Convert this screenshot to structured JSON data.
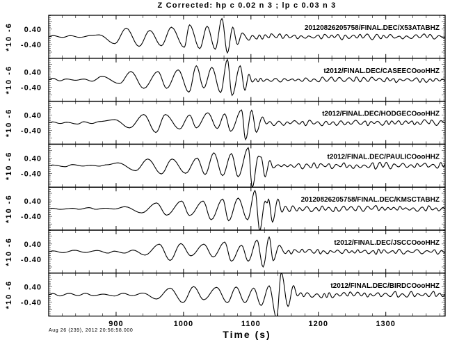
{
  "chart_data": {
    "type": "line",
    "title": "Z Corrected: hp c 0.02 n 3 ; lp c 0.03 n 3",
    "xlabel": "Time (s)",
    "start_time_label": "Aug 26 (239), 2012 20:56:58.000",
    "xlim": [
      800,
      1388
    ],
    "xticks": [
      900,
      1000,
      1100,
      1200,
      1300
    ],
    "xtick_labels": [
      "900",
      "1000",
      "1100",
      "1200",
      "1300"
    ],
    "y_multiplier_label": "*10 -6",
    "ytick_labels": [
      "0.40",
      "-0.40"
    ],
    "yticks": [
      0.4,
      -0.4
    ],
    "ylim": [
      -1.12,
      1.12
    ],
    "line_color": "#000000",
    "series": [
      {
        "name": "20120826205758/FINAL.DEC/X53ATABHZ",
        "pre_noise": 0.08,
        "coda_amp": 0.13,
        "extrema": [
          [
            875,
            0.1
          ],
          [
            898,
            -0.36
          ],
          [
            915,
            0.45
          ],
          [
            934,
            -0.5
          ],
          [
            950,
            0.33
          ],
          [
            967,
            -0.47
          ],
          [
            982,
            0.5
          ],
          [
            1001,
            -0.55
          ],
          [
            1009,
            0.62
          ],
          [
            1024,
            -0.62
          ],
          [
            1035,
            0.55
          ],
          [
            1047,
            -0.65
          ],
          [
            1057,
            0.95
          ],
          [
            1065,
            -0.84
          ],
          [
            1073,
            0.5
          ],
          [
            1080,
            -0.4
          ],
          [
            1087,
            0.2
          ],
          [
            1097,
            -0.18
          ]
        ]
      },
      {
        "name": "t2012/FINAL.DEC/CASEECOooHHZ",
        "pre_noise": 0.07,
        "coda_amp": 0.12,
        "extrema": [
          [
            879,
            0.18
          ],
          [
            905,
            -0.2
          ],
          [
            922,
            0.43
          ],
          [
            941,
            -0.45
          ],
          [
            962,
            0.43
          ],
          [
            975,
            -0.45
          ],
          [
            992,
            0.52
          ],
          [
            1008,
            -0.65
          ],
          [
            1019,
            0.73
          ],
          [
            1030,
            -0.43
          ],
          [
            1042,
            0.65
          ],
          [
            1055,
            -0.67
          ],
          [
            1065,
            1.06
          ],
          [
            1072,
            -0.82
          ],
          [
            1084,
            0.73
          ],
          [
            1091,
            -0.55
          ],
          [
            1097,
            0.28
          ],
          [
            1102,
            -0.12
          ]
        ]
      },
      {
        "name": "t2012/FINAL.DEC/HODGECOooHHZ",
        "pre_noise": 0.06,
        "coda_amp": 0.13,
        "extrema": [
          [
            898,
            0.16
          ],
          [
            920,
            -0.27
          ],
          [
            941,
            0.43
          ],
          [
            959,
            -0.51
          ],
          [
            973,
            0.43
          ],
          [
            994,
            -0.33
          ],
          [
            1009,
            0.4
          ],
          [
            1019,
            -0.27
          ],
          [
            1036,
            0.52
          ],
          [
            1050,
            -0.3
          ],
          [
            1061,
            0.46
          ],
          [
            1070,
            -0.45
          ],
          [
            1086,
            0.67
          ],
          [
            1092,
            -0.88
          ],
          [
            1101,
            0.65
          ],
          [
            1108,
            -0.5
          ],
          [
            1117,
            0.3
          ],
          [
            1123,
            -0.06
          ]
        ]
      },
      {
        "name": "t2012/FINAL.DEC/PAULICOooHHZ",
        "pre_noise": 0.06,
        "coda_amp": 0.15,
        "extrema": [
          [
            903,
            0.15
          ],
          [
            929,
            -0.26
          ],
          [
            947,
            0.35
          ],
          [
            967,
            -0.43
          ],
          [
            983,
            0.35
          ],
          [
            1003,
            -0.4
          ],
          [
            1020,
            0.4
          ],
          [
            1032,
            -0.46
          ],
          [
            1045,
            0.67
          ],
          [
            1058,
            -0.52
          ],
          [
            1071,
            0.63
          ],
          [
            1081,
            -0.58
          ],
          [
            1096,
            0.94
          ],
          [
            1102,
            -1.13
          ],
          [
            1111,
            0.5
          ],
          [
            1115,
            0.45
          ],
          [
            1121,
            -0.58
          ],
          [
            1128,
            0.27
          ]
        ]
      },
      {
        "name": "20120826205758/FINAL.DEC/KMSCTABHZ",
        "pre_noise": 0.06,
        "coda_amp": 0.13,
        "extrema": [
          [
            913,
            0.1
          ],
          [
            938,
            -0.22
          ],
          [
            960,
            0.3
          ],
          [
            975,
            -0.34
          ],
          [
            997,
            0.4
          ],
          [
            1009,
            -0.36
          ],
          [
            1029,
            0.4
          ],
          [
            1041,
            -0.58
          ],
          [
            1058,
            0.5
          ],
          [
            1067,
            -0.63
          ],
          [
            1081,
            0.55
          ],
          [
            1095,
            -0.58
          ],
          [
            1106,
            0.95
          ],
          [
            1113,
            -1.15
          ],
          [
            1121,
            0.39
          ],
          [
            1124,
            0.3
          ],
          [
            1126,
            0.5
          ],
          [
            1132,
            -0.7
          ],
          [
            1140,
            0.5
          ],
          [
            1146,
            -0.18
          ]
        ]
      },
      {
        "name": "t2012/FINAL.DEC/JSCCOooHHZ",
        "pre_noise": 0.06,
        "coda_amp": 0.12,
        "extrema": [
          [
            925,
            0.08
          ],
          [
            943,
            -0.18
          ],
          [
            964,
            0.39
          ],
          [
            980,
            -0.46
          ],
          [
            996,
            0.42
          ],
          [
            1011,
            -0.22
          ],
          [
            1030,
            0.39
          ],
          [
            1044,
            -0.28
          ],
          [
            1061,
            0.5
          ],
          [
            1071,
            -0.5
          ],
          [
            1086,
            0.33
          ],
          [
            1096,
            -0.5
          ],
          [
            1109,
            0.6
          ],
          [
            1118,
            -0.8
          ],
          [
            1127,
            0.76
          ],
          [
            1133,
            -0.47
          ],
          [
            1142,
            0.33
          ],
          [
            1151,
            -0.1
          ]
        ]
      },
      {
        "name": "t2012/FINAL.DEC/BIRDCOooHHZ",
        "pre_noise": 0.06,
        "coda_amp": 0.14,
        "extrema": [
          [
            940,
            0.08
          ],
          [
            960,
            -0.23
          ],
          [
            980,
            0.34
          ],
          [
            999,
            -0.42
          ],
          [
            1015,
            0.42
          ],
          [
            1030,
            -0.27
          ],
          [
            1049,
            0.38
          ],
          [
            1065,
            -0.42
          ],
          [
            1078,
            0.4
          ],
          [
            1091,
            -0.42
          ],
          [
            1104,
            0.34
          ],
          [
            1115,
            -0.57
          ],
          [
            1127,
            0.46
          ],
          [
            1138,
            -1.25
          ],
          [
            1145,
            1.15
          ],
          [
            1155,
            -0.62
          ],
          [
            1163,
            0.47
          ],
          [
            1169,
            -0.07
          ]
        ]
      }
    ]
  }
}
